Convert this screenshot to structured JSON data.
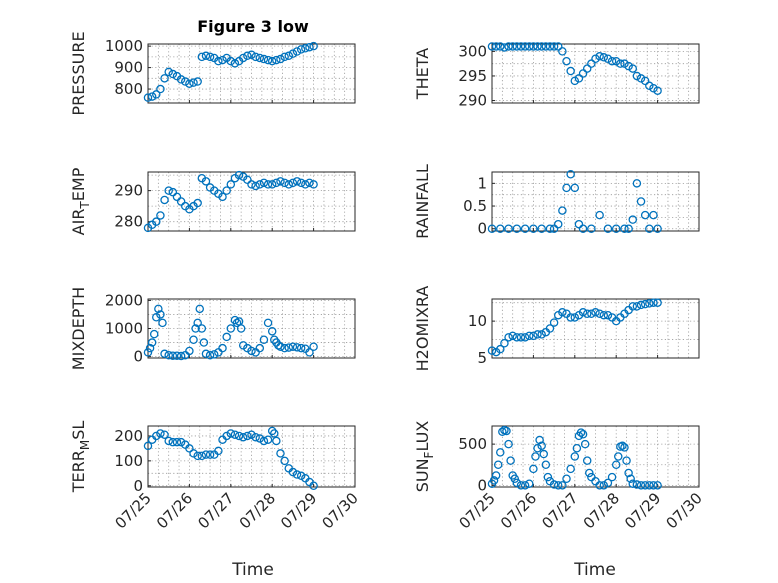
{
  "title": "Figure 3 low",
  "xlabel": "Time",
  "colors": {
    "marker": "#0072BD",
    "grid": "#9a9a9a",
    "axis": "#262626"
  },
  "chart_data": [
    {
      "type": "scatter",
      "ylabel": "PRESSURE",
      "xlim": [
        0,
        5
      ],
      "ylim": [
        735,
        1010
      ],
      "yticks": [
        800,
        900,
        1000
      ],
      "xticks_shown": false,
      "x": [
        0.0,
        0.1,
        0.2,
        0.3,
        0.4,
        0.5,
        0.6,
        0.7,
        0.8,
        0.9,
        1.0,
        1.1,
        1.2,
        1.3,
        1.4,
        1.5,
        1.6,
        1.7,
        1.8,
        1.9,
        2.0,
        2.1,
        2.2,
        2.3,
        2.4,
        2.5,
        2.6,
        2.7,
        2.8,
        2.9,
        3.0,
        3.1,
        3.2,
        3.3,
        3.4,
        3.5,
        3.6,
        3.7,
        3.8,
        3.9,
        4.0
      ],
      "y": [
        760,
        765,
        775,
        800,
        850,
        880,
        870,
        860,
        845,
        835,
        825,
        830,
        835,
        950,
        955,
        950,
        945,
        930,
        935,
        945,
        930,
        920,
        930,
        945,
        955,
        960,
        950,
        945,
        940,
        935,
        930,
        935,
        940,
        950,
        955,
        965,
        975,
        985,
        990,
        995,
        1000
      ]
    },
    {
      "type": "scatter",
      "ylabel": "THETA",
      "xlim": [
        0,
        5
      ],
      "ylim": [
        289.5,
        301.5
      ],
      "yticks": [
        290,
        295,
        300
      ],
      "xticks_shown": false,
      "x": [
        0.0,
        0.1,
        0.2,
        0.3,
        0.4,
        0.5,
        0.6,
        0.7,
        0.8,
        0.9,
        1.0,
        1.1,
        1.2,
        1.3,
        1.4,
        1.5,
        1.6,
        1.7,
        1.8,
        1.9,
        2.0,
        2.1,
        2.2,
        2.3,
        2.4,
        2.5,
        2.6,
        2.7,
        2.8,
        2.9,
        3.0,
        3.1,
        3.2,
        3.3,
        3.4,
        3.5,
        3.6,
        3.7,
        3.8,
        3.9,
        4.0
      ],
      "y": [
        301,
        301,
        301,
        300.8,
        301,
        301,
        301,
        301,
        301,
        301,
        301,
        301,
        301,
        301,
        301,
        301,
        301,
        300,
        298,
        296,
        294,
        294.5,
        295.5,
        296.5,
        297.5,
        298.5,
        299,
        298.8,
        298.5,
        298,
        298,
        297.5,
        297.5,
        297,
        296.5,
        295,
        294.5,
        294,
        293,
        292.5,
        292
      ]
    },
    {
      "type": "scatter",
      "ylabel": "AIR_TEMP",
      "xlim": [
        0,
        5
      ],
      "ylim": [
        277,
        296
      ],
      "yticks": [
        280,
        290
      ],
      "xticks_shown": false,
      "x": [
        0.0,
        0.1,
        0.2,
        0.3,
        0.4,
        0.5,
        0.6,
        0.7,
        0.8,
        0.9,
        1.0,
        1.1,
        1.2,
        1.3,
        1.4,
        1.5,
        1.6,
        1.7,
        1.8,
        1.9,
        2.0,
        2.1,
        2.2,
        2.3,
        2.4,
        2.5,
        2.6,
        2.7,
        2.8,
        2.9,
        3.0,
        3.1,
        3.2,
        3.3,
        3.4,
        3.5,
        3.6,
        3.7,
        3.8,
        3.9,
        4.0
      ],
      "y": [
        278,
        279,
        280,
        282,
        287,
        290,
        289.5,
        288,
        286.5,
        285,
        284,
        285,
        286,
        294,
        293,
        291,
        290,
        289,
        288,
        290,
        292,
        294,
        295,
        294.5,
        293.5,
        292,
        291.5,
        292,
        292.5,
        292,
        292,
        292.5,
        293,
        292.5,
        292,
        292.5,
        293,
        292.5,
        292,
        292.5,
        292
      ]
    },
    {
      "type": "scatter",
      "ylabel": "RAINFALL",
      "xlim": [
        0,
        5
      ],
      "ylim": [
        -0.05,
        1.25
      ],
      "yticks": [
        0,
        0.5,
        1
      ],
      "xticks_shown": false,
      "x": [
        0.0,
        0.2,
        0.4,
        0.6,
        0.8,
        1.0,
        1.2,
        1.4,
        1.5,
        1.6,
        1.7,
        1.8,
        1.9,
        2.0,
        2.1,
        2.2,
        2.4,
        2.6,
        2.8,
        3.0,
        3.2,
        3.3,
        3.4,
        3.5,
        3.6,
        3.7,
        3.8,
        3.9,
        4.0
      ],
      "y": [
        0,
        0,
        0,
        0,
        0,
        0,
        0,
        0,
        0,
        0.1,
        0.4,
        0.9,
        1.2,
        0.9,
        0.1,
        0,
        0,
        0.3,
        0,
        0,
        0,
        0,
        0.2,
        1.0,
        0.6,
        0.3,
        0,
        0.3,
        0
      ]
    },
    {
      "type": "scatter",
      "ylabel": "MIXDEPTH",
      "xlim": [
        0,
        5
      ],
      "ylim": [
        -50,
        2050
      ],
      "yticks": [
        0,
        1000,
        2000
      ],
      "xticks_shown": false,
      "x": [
        0.0,
        0.05,
        0.1,
        0.15,
        0.2,
        0.25,
        0.3,
        0.35,
        0.4,
        0.5,
        0.6,
        0.7,
        0.8,
        0.9,
        1.0,
        1.1,
        1.15,
        1.2,
        1.25,
        1.3,
        1.35,
        1.4,
        1.5,
        1.6,
        1.7,
        1.8,
        1.9,
        2.0,
        2.1,
        2.15,
        2.2,
        2.25,
        2.3,
        2.4,
        2.5,
        2.6,
        2.7,
        2.8,
        2.9,
        3.0,
        3.05,
        3.1,
        3.15,
        3.2,
        3.3,
        3.4,
        3.5,
        3.6,
        3.7,
        3.8,
        3.9,
        4.0
      ],
      "y": [
        150,
        300,
        500,
        800,
        1400,
        1700,
        1500,
        1200,
        100,
        50,
        30,
        30,
        20,
        50,
        200,
        600,
        1000,
        1200,
        1700,
        1000,
        500,
        100,
        50,
        80,
        150,
        300,
        700,
        1000,
        1300,
        1200,
        1250,
        1000,
        400,
        300,
        200,
        150,
        300,
        600,
        1200,
        900,
        600,
        500,
        400,
        350,
        300,
        320,
        350,
        330,
        300,
        280,
        150,
        350
      ]
    },
    {
      "type": "scatter",
      "ylabel": "H2OMIXRA",
      "xlim": [
        0,
        5
      ],
      "ylim": [
        5,
        13
      ],
      "yticks": [
        5,
        10
      ],
      "xticks_shown": false,
      "x": [
        0.0,
        0.1,
        0.2,
        0.3,
        0.4,
        0.5,
        0.6,
        0.7,
        0.8,
        0.9,
        1.0,
        1.1,
        1.2,
        1.3,
        1.4,
        1.5,
        1.6,
        1.7,
        1.8,
        1.9,
        2.0,
        2.1,
        2.2,
        2.3,
        2.4,
        2.5,
        2.6,
        2.7,
        2.8,
        2.9,
        3.0,
        3.1,
        3.2,
        3.3,
        3.4,
        3.5,
        3.6,
        3.7,
        3.8,
        3.9,
        4.0
      ],
      "y": [
        6,
        5.8,
        6.2,
        7,
        7.8,
        8,
        7.8,
        7.8,
        7.8,
        8,
        8,
        8.2,
        8.2,
        8.5,
        9,
        9.8,
        10.8,
        11.2,
        11,
        10.5,
        10.5,
        10.8,
        11.2,
        11,
        11,
        11.2,
        11,
        10.8,
        10.8,
        10.5,
        10,
        10.5,
        11,
        11.5,
        12,
        12,
        12.2,
        12.3,
        12.4,
        12.5,
        12.5
      ]
    },
    {
      "type": "scatter",
      "ylabel": "TERR_MSL",
      "xlim": [
        0,
        5
      ],
      "ylim": [
        -5,
        240
      ],
      "yticks": [
        0,
        100,
        200
      ],
      "xticks_shown": true,
      "x": [
        0.0,
        0.1,
        0.2,
        0.3,
        0.4,
        0.5,
        0.6,
        0.7,
        0.8,
        0.9,
        1.0,
        1.1,
        1.2,
        1.3,
        1.4,
        1.5,
        1.6,
        1.7,
        1.8,
        1.9,
        2.0,
        2.1,
        2.2,
        2.3,
        2.4,
        2.5,
        2.6,
        2.7,
        2.8,
        2.9,
        3.0,
        3.05,
        3.1,
        3.2,
        3.3,
        3.4,
        3.5,
        3.6,
        3.7,
        3.8,
        3.9,
        4.0
      ],
      "y": [
        160,
        185,
        200,
        210,
        205,
        180,
        175,
        175,
        175,
        165,
        150,
        130,
        120,
        120,
        125,
        125,
        125,
        140,
        185,
        200,
        210,
        205,
        200,
        195,
        200,
        205,
        195,
        190,
        180,
        185,
        220,
        210,
        180,
        130,
        100,
        70,
        55,
        45,
        40,
        30,
        15,
        0
      ]
    },
    {
      "type": "scatter",
      "ylabel": "SUN_FLUX",
      "xlim": [
        0,
        5
      ],
      "ylim": [
        -20,
        720
      ],
      "yticks": [
        0,
        500
      ],
      "xticks_shown": true,
      "x": [
        0.0,
        0.05,
        0.1,
        0.15,
        0.2,
        0.25,
        0.3,
        0.35,
        0.4,
        0.45,
        0.5,
        0.55,
        0.6,
        0.7,
        0.8,
        0.9,
        1.0,
        1.05,
        1.1,
        1.15,
        1.2,
        1.25,
        1.3,
        1.35,
        1.4,
        1.5,
        1.6,
        1.7,
        1.8,
        1.9,
        2.0,
        2.05,
        2.1,
        2.15,
        2.2,
        2.25,
        2.3,
        2.35,
        2.4,
        2.5,
        2.6,
        2.7,
        2.8,
        2.9,
        3.0,
        3.05,
        3.1,
        3.15,
        3.2,
        3.25,
        3.3,
        3.35,
        3.4,
        3.5,
        3.6,
        3.7,
        3.8,
        3.9,
        4.0
      ],
      "y": [
        20,
        60,
        120,
        250,
        400,
        650,
        670,
        660,
        500,
        300,
        120,
        80,
        30,
        0,
        0,
        20,
        200,
        350,
        450,
        550,
        480,
        380,
        250,
        100,
        50,
        10,
        0,
        0,
        80,
        200,
        350,
        450,
        600,
        640,
        620,
        500,
        300,
        150,
        100,
        50,
        0,
        0,
        30,
        100,
        250,
        350,
        470,
        480,
        460,
        300,
        150,
        80,
        20,
        10,
        0,
        0,
        0,
        0,
        0
      ]
    }
  ],
  "xticks": [
    "07/25",
    "07/26",
    "07/27",
    "07/28",
    "07/29",
    "07/30"
  ]
}
